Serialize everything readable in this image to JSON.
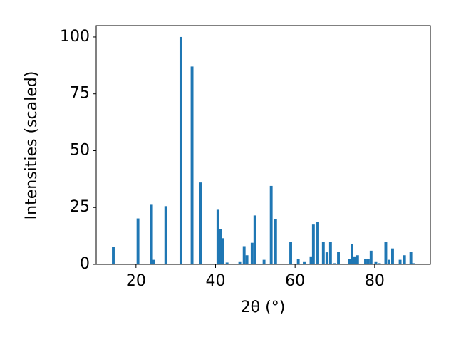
{
  "chart_data": {
    "type": "bar",
    "xlabel": "2θ (°)",
    "ylabel": "Intensities (scaled)",
    "x": [
      14.3,
      20.5,
      23.9,
      24.5,
      27.5,
      31.3,
      34.1,
      36.3,
      40.6,
      41.3,
      41.8,
      42.9,
      46.1,
      47.2,
      47.9,
      49.2,
      49.9,
      52.2,
      54.0,
      55.1,
      58.9,
      60.8,
      62.3,
      64.0,
      64.6,
      65.7,
      67.1,
      68.0,
      68.9,
      70.0,
      70.9,
      73.7,
      74.3,
      75.0,
      75.7,
      77.7,
      78.4,
      79.1,
      80.3,
      81.2,
      82.8,
      83.6,
      84.5,
      86.4,
      87.5,
      89.1,
      89.7
    ],
    "values": [
      7.6,
      20.2,
      26.2,
      2,
      25.6,
      100,
      87,
      36,
      24,
      15.5,
      11.5,
      0.8,
      1,
      8,
      4,
      9.5,
      21.5,
      2,
      34.5,
      20,
      10,
      2.2,
      1,
      3.5,
      17.5,
      18.5,
      10,
      5.3,
      10,
      0.5,
      5.5,
      2.5,
      9,
      3.5,
      4,
      2.2,
      2.2,
      6,
      1,
      0.5,
      10,
      2,
      7,
      2,
      4,
      5.5,
      0.5
    ],
    "color": "#1f77b4",
    "xlim": [
      10,
      94
    ],
    "ylim": [
      0,
      105
    ],
    "xticks": [
      20,
      40,
      60,
      80
    ],
    "yticks": [
      0,
      25,
      50,
      75,
      100
    ]
  }
}
